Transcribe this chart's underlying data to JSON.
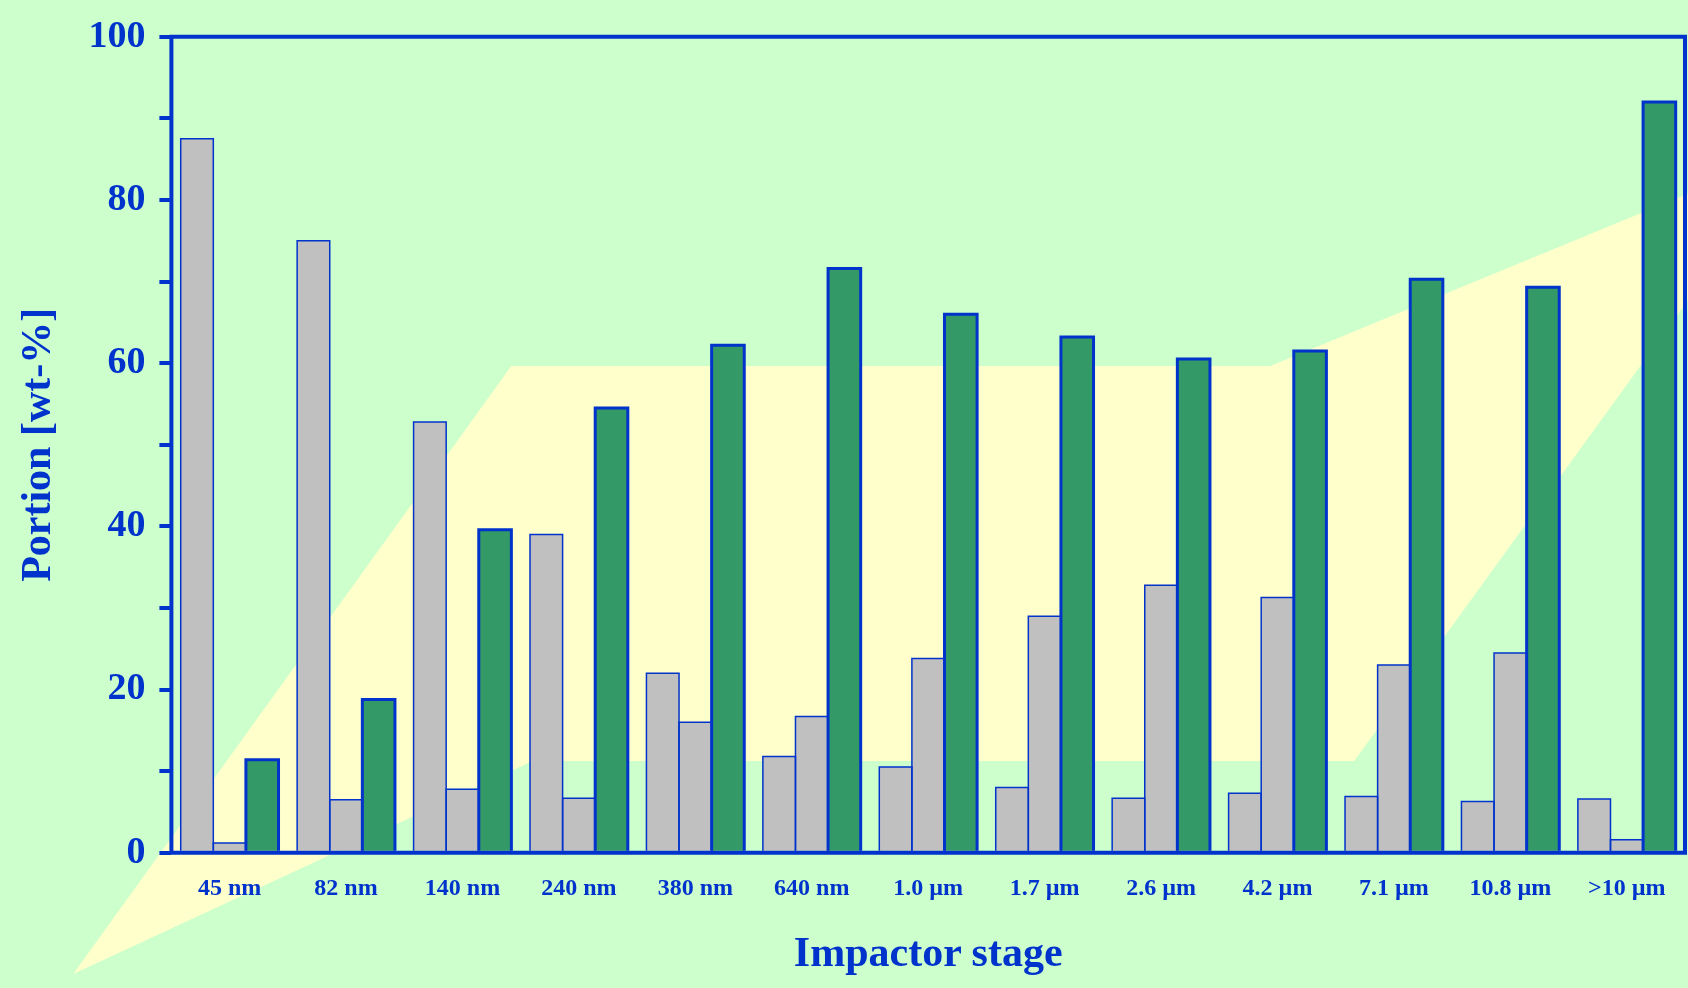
{
  "chart_data": {
    "type": "bar",
    "xlabel": "Impactor stage",
    "ylabel": "Portion [wt-%]",
    "categories": [
      "45 nm",
      "82 nm",
      "140 nm",
      "240 nm",
      "380 nm",
      "640 nm",
      "1.0 µm",
      "1.7 µm",
      "2.6 µm",
      "4.2 µm",
      "7.1 µm",
      "10.8 µm",
      ">10 µm"
    ],
    "series": [
      {
        "color": "#c0c0c0",
        "values": [
          87.5,
          75,
          52.8,
          39,
          22,
          11.8,
          10.5,
          8,
          6.7,
          7.3,
          6.9,
          6.3,
          6.6
        ]
      },
      {
        "color": "#c0c0c0",
        "values": [
          1.2,
          6.5,
          7.8,
          6.7,
          16,
          16.7,
          23.8,
          29,
          32.8,
          31.3,
          23,
          24.5,
          1.6
        ]
      },
      {
        "color": "#339966",
        "values": [
          11.4,
          18.8,
          39.6,
          54.5,
          62.2,
          71.6,
          66,
          63.2,
          60.5,
          61.5,
          70.3,
          69.3,
          92
        ]
      }
    ],
    "ylim": [
      0,
      100
    ],
    "yticks": [
      0,
      {
        "value": 10,
        "label": null
      },
      20,
      {
        "value": 30,
        "label": null
      },
      40,
      {
        "value": 50,
        "label": null
      },
      60,
      {
        "value": 70,
        "label": null
      },
      80,
      {
        "value": 90,
        "label": null
      },
      100
    ]
  }
}
